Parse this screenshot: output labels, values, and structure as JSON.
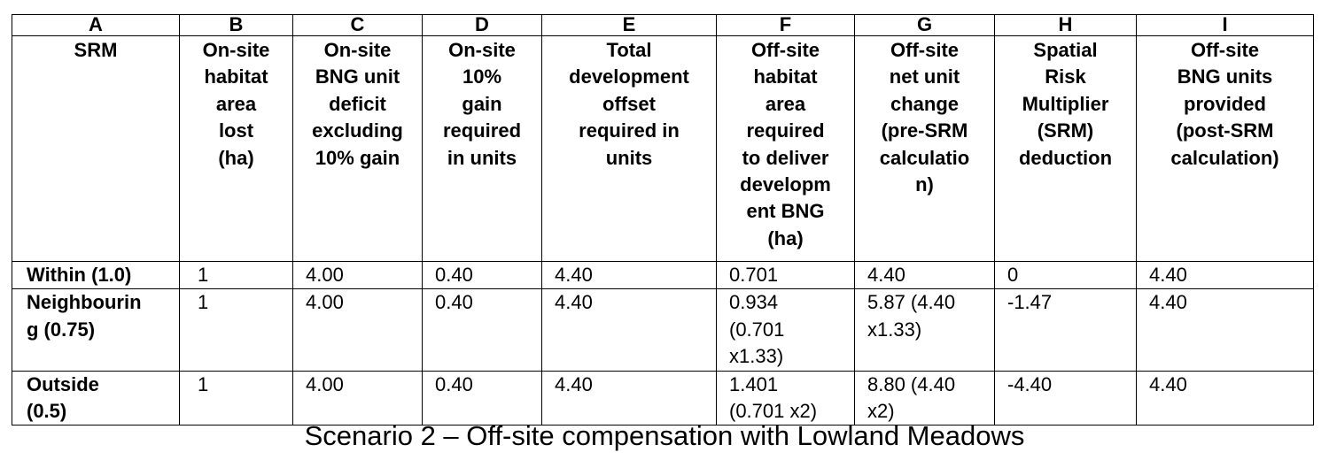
{
  "table": {
    "column_letters": [
      "A",
      "B",
      "C",
      "D",
      "E",
      "F",
      "G",
      "H",
      "I"
    ],
    "headers": [
      "SRM",
      "On-site\nhabitat\narea\nlost\n(ha)",
      "On-site\nBNG unit\ndeficit\nexcluding\n10% gain",
      "On-site\n10%\ngain\nrequired\nin units",
      "Total\ndevelopment\noffset\nrequired in\nunits",
      "Off-site\nhabitat\narea\nrequired\nto deliver\ndevelopm\nent BNG\n(ha)",
      "Off-site\nnet unit\nchange\n(pre-SRM\ncalculatio\nn)",
      "Spatial\nRisk\nMultiplier\n(SRM)\ndeduction",
      "Off-site\nBNG units\nprovided\n(post-SRM\ncalculation)"
    ],
    "rows": [
      {
        "label": "Within (1.0)",
        "cells": [
          "1",
          "4.00",
          "0.40",
          "4.40",
          "0.701",
          "4.40",
          "0",
          "4.40"
        ]
      },
      {
        "label": "Neighbourin\ng (0.75)",
        "cells": [
          "1",
          "4.00",
          "0.40",
          "4.40",
          "0.934\n(0.701\nx1.33)",
          "5.87 (4.40\nx1.33)",
          "-1.47",
          "4.40"
        ]
      },
      {
        "label": "Outside\n(0.5)",
        "cells": [
          "1",
          "4.00",
          "0.40",
          "4.40",
          "1.401\n(0.701 x2)",
          "8.80 (4.40\nx2)",
          "-4.40",
          "4.40"
        ]
      }
    ]
  },
  "caption": "Scenario 2 – Off-site compensation with Lowland Meadows"
}
